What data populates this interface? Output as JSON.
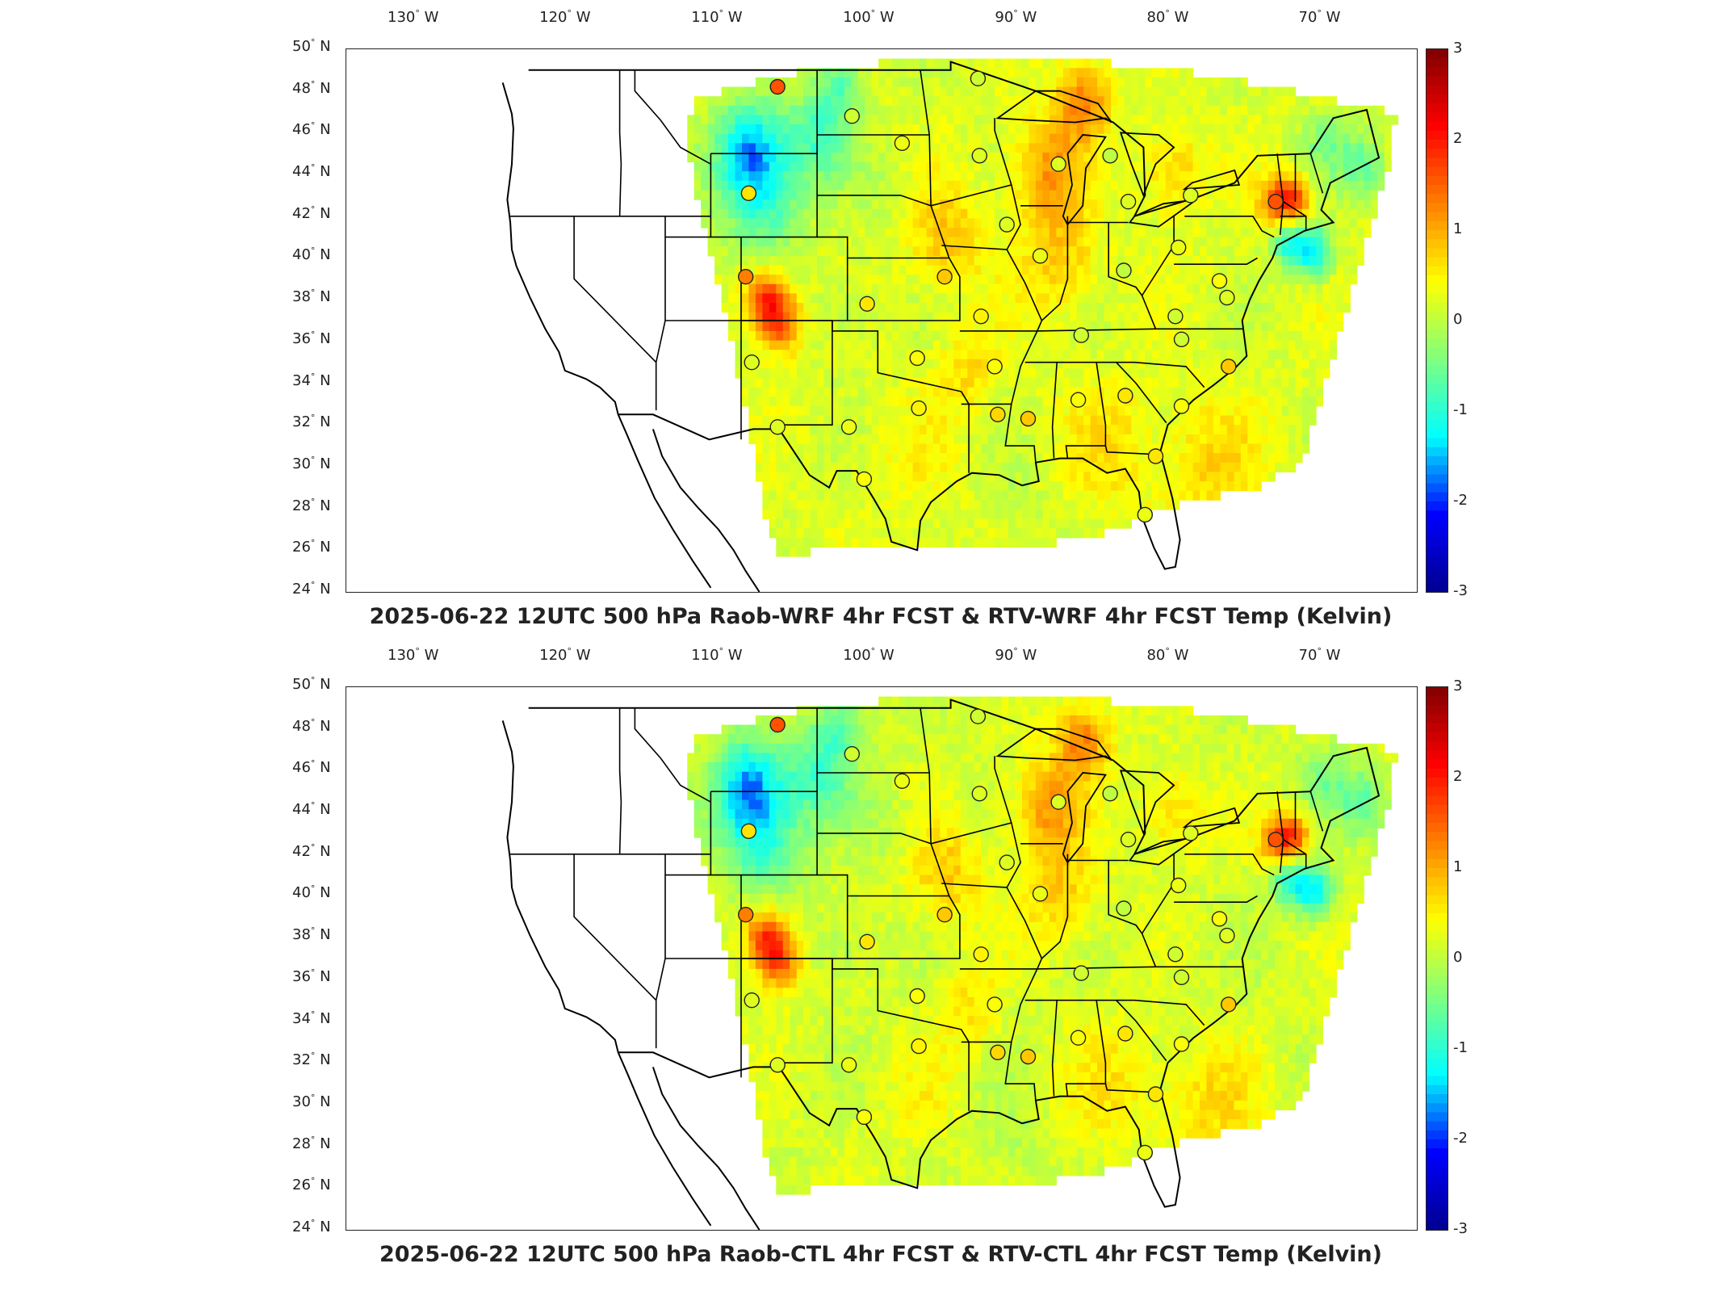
{
  "panels": [
    {
      "title": "2025-06-22 12UTC 500 hPa Raob-WRF 4hr FCST & RTV-WRF 4hr FCST Temp (Kelvin)",
      "lon_labels": [
        "130",
        "120",
        "110",
        "100",
        "90",
        "80",
        "70"
      ],
      "lat_labels": [
        "50",
        "48",
        "46",
        "44",
        "42",
        "40",
        "38",
        "36",
        "34",
        "32",
        "30",
        "28",
        "26",
        "24"
      ],
      "colorbar_ticks": [
        "3",
        "2",
        "1",
        "0",
        "-1",
        "-2",
        "-3"
      ],
      "stations": [
        {
          "lon": -106.6,
          "lat": 48.2,
          "value": 1.6
        },
        {
          "lon": -108.5,
          "lat": 43.1,
          "value": 0.6
        },
        {
          "lon": -108.7,
          "lat": 39.1,
          "value": 1.3
        },
        {
          "lon": -108.3,
          "lat": 35.0,
          "value": 0.2
        },
        {
          "lon": -106.6,
          "lat": 31.9,
          "value": 0.2
        },
        {
          "lon": -101.7,
          "lat": 46.8,
          "value": 0.1
        },
        {
          "lon": -98.4,
          "lat": 45.5,
          "value": 0.3
        },
        {
          "lon": -93.4,
          "lat": 48.6,
          "value": 0.1
        },
        {
          "lon": -93.3,
          "lat": 44.9,
          "value": 0.2
        },
        {
          "lon": -100.7,
          "lat": 37.8,
          "value": 0.6
        },
        {
          "lon": -95.6,
          "lat": 39.1,
          "value": 0.8
        },
        {
          "lon": -91.5,
          "lat": 41.6,
          "value": 0.2
        },
        {
          "lon": -89.3,
          "lat": 40.1,
          "value": 0.3
        },
        {
          "lon": -97.4,
          "lat": 35.2,
          "value": 0.4
        },
        {
          "lon": -93.2,
          "lat": 37.2,
          "value": 0.5
        },
        {
          "lon": -92.3,
          "lat": 34.8,
          "value": 0.4
        },
        {
          "lon": -101.9,
          "lat": 31.9,
          "value": 0.3
        },
        {
          "lon": -97.3,
          "lat": 32.8,
          "value": 0.5
        },
        {
          "lon": -92.1,
          "lat": 32.5,
          "value": 0.7
        },
        {
          "lon": -100.9,
          "lat": 29.4,
          "value": 0.4
        },
        {
          "lon": -88.1,
          "lat": 44.5,
          "value": 0.2
        },
        {
          "lon": -84.7,
          "lat": 44.9,
          "value": 0.0
        },
        {
          "lon": -83.5,
          "lat": 42.7,
          "value": 0.2
        },
        {
          "lon": -83.8,
          "lat": 39.4,
          "value": 0.0
        },
        {
          "lon": -80.2,
          "lat": 40.5,
          "value": 0.3
        },
        {
          "lon": -79.4,
          "lat": 43.0,
          "value": 0.2
        },
        {
          "lon": -86.6,
          "lat": 36.3,
          "value": 0.1
        },
        {
          "lon": -86.8,
          "lat": 33.2,
          "value": 0.4
        },
        {
          "lon": -83.7,
          "lat": 33.4,
          "value": 0.6
        },
        {
          "lon": -90.1,
          "lat": 32.3,
          "value": 0.8
        },
        {
          "lon": -80.4,
          "lat": 37.2,
          "value": 0.1
        },
        {
          "lon": -80.0,
          "lat": 36.1,
          "value": 0.1
        },
        {
          "lon": -77.5,
          "lat": 38.9,
          "value": 0.4
        },
        {
          "lon": -76.9,
          "lat": 34.8,
          "value": 0.8
        },
        {
          "lon": -80.0,
          "lat": 32.9,
          "value": 0.4
        },
        {
          "lon": -81.7,
          "lat": 30.5,
          "value": 0.6
        },
        {
          "lon": -82.4,
          "lat": 27.7,
          "value": 0.3
        },
        {
          "lon": -73.8,
          "lat": 42.7,
          "value": 1.6
        },
        {
          "lon": -77.0,
          "lat": 38.1,
          "value": 0.2
        }
      ]
    },
    {
      "title": "2025-06-22 12UTC 500 hPa Raob-CTL 4hr FCST & RTV-CTL 4hr FCST Temp (Kelvin)",
      "lon_labels": [
        "130",
        "120",
        "110",
        "100",
        "90",
        "80",
        "70"
      ],
      "lat_labels": [
        "50",
        "48",
        "46",
        "44",
        "42",
        "40",
        "38",
        "36",
        "34",
        "32",
        "30",
        "28",
        "26",
        "24"
      ],
      "colorbar_ticks": [
        "3",
        "2",
        "1",
        "0",
        "-1",
        "-2",
        "-3"
      ],
      "stations": [
        {
          "lon": -106.6,
          "lat": 48.2,
          "value": 1.6
        },
        {
          "lon": -108.5,
          "lat": 43.1,
          "value": 0.6
        },
        {
          "lon": -108.7,
          "lat": 39.1,
          "value": 1.3
        },
        {
          "lon": -108.3,
          "lat": 35.0,
          "value": 0.2
        },
        {
          "lon": -106.6,
          "lat": 31.9,
          "value": 0.2
        },
        {
          "lon": -101.7,
          "lat": 46.8,
          "value": 0.1
        },
        {
          "lon": -98.4,
          "lat": 45.5,
          "value": 0.3
        },
        {
          "lon": -93.4,
          "lat": 48.6,
          "value": 0.1
        },
        {
          "lon": -93.3,
          "lat": 44.9,
          "value": 0.2
        },
        {
          "lon": -100.7,
          "lat": 37.8,
          "value": 0.6
        },
        {
          "lon": -95.6,
          "lat": 39.1,
          "value": 0.8
        },
        {
          "lon": -91.5,
          "lat": 41.6,
          "value": 0.2
        },
        {
          "lon": -89.3,
          "lat": 40.1,
          "value": 0.3
        },
        {
          "lon": -97.4,
          "lat": 35.2,
          "value": 0.4
        },
        {
          "lon": -93.2,
          "lat": 37.2,
          "value": 0.5
        },
        {
          "lon": -92.3,
          "lat": 34.8,
          "value": 0.4
        },
        {
          "lon": -101.9,
          "lat": 31.9,
          "value": 0.3
        },
        {
          "lon": -97.3,
          "lat": 32.8,
          "value": 0.5
        },
        {
          "lon": -92.1,
          "lat": 32.5,
          "value": 0.7
        },
        {
          "lon": -100.9,
          "lat": 29.4,
          "value": 0.4
        },
        {
          "lon": -88.1,
          "lat": 44.5,
          "value": 0.2
        },
        {
          "lon": -84.7,
          "lat": 44.9,
          "value": 0.0
        },
        {
          "lon": -83.5,
          "lat": 42.7,
          "value": 0.2
        },
        {
          "lon": -83.8,
          "lat": 39.4,
          "value": 0.0
        },
        {
          "lon": -80.2,
          "lat": 40.5,
          "value": 0.3
        },
        {
          "lon": -79.4,
          "lat": 43.0,
          "value": 0.2
        },
        {
          "lon": -86.6,
          "lat": 36.3,
          "value": 0.1
        },
        {
          "lon": -86.8,
          "lat": 33.2,
          "value": 0.4
        },
        {
          "lon": -83.7,
          "lat": 33.4,
          "value": 0.6
        },
        {
          "lon": -90.1,
          "lat": 32.3,
          "value": 0.8
        },
        {
          "lon": -80.4,
          "lat": 37.2,
          "value": 0.1
        },
        {
          "lon": -80.0,
          "lat": 36.1,
          "value": 0.1
        },
        {
          "lon": -77.5,
          "lat": 38.9,
          "value": 0.4
        },
        {
          "lon": -76.9,
          "lat": 34.8,
          "value": 0.8
        },
        {
          "lon": -80.0,
          "lat": 32.9,
          "value": 0.4
        },
        {
          "lon": -81.7,
          "lat": 30.5,
          "value": 0.6
        },
        {
          "lon": -82.4,
          "lat": 27.7,
          "value": 0.3
        },
        {
          "lon": -73.8,
          "lat": 42.7,
          "value": 1.6
        },
        {
          "lon": -77.0,
          "lat": 38.1,
          "value": 0.2
        }
      ]
    }
  ],
  "lon_suffix": "W",
  "lat_suffix": "N",
  "degree_symbol": "°",
  "colorbar_range": [
    -3,
    3
  ],
  "colormap": [
    "#00008f",
    "#0000ff",
    "#00ffff",
    "#7fff7f",
    "#ffff00",
    "#ff8000",
    "#ff0000",
    "#800000"
  ]
}
